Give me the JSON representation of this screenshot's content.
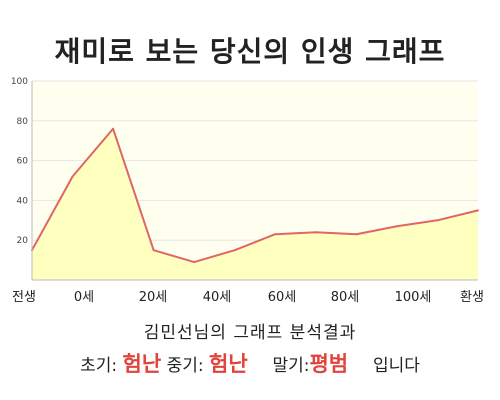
{
  "title": "재미로 보는 당신의 인생 그래프",
  "chart_data": {
    "type": "area",
    "categories": [
      "전생",
      "0세",
      "20세",
      "40세",
      "60세",
      "80세",
      "100세",
      "환생"
    ],
    "x": [
      0,
      10,
      20,
      30,
      40,
      50,
      60,
      70,
      80,
      90,
      100,
      110
    ],
    "values": [
      15,
      52,
      76,
      15,
      9,
      15,
      23,
      24,
      23,
      27,
      30,
      35
    ],
    "ylim": [
      0,
      100
    ],
    "yticks": [
      20,
      40,
      60,
      80,
      100
    ],
    "grid": true,
    "colors": {
      "line": "#e06666",
      "fill": "#ffffc0",
      "plot_bg": "#fffff0",
      "grid": "#e6e6e6"
    }
  },
  "subtitle": "김민선님의 그래프 분석결과",
  "summary": {
    "early_label": "초기:",
    "early_value": "험난",
    "mid_label": "중기:",
    "mid_value": "험난",
    "late_label": "말기:",
    "late_value": "평범",
    "ending": "입니다"
  }
}
